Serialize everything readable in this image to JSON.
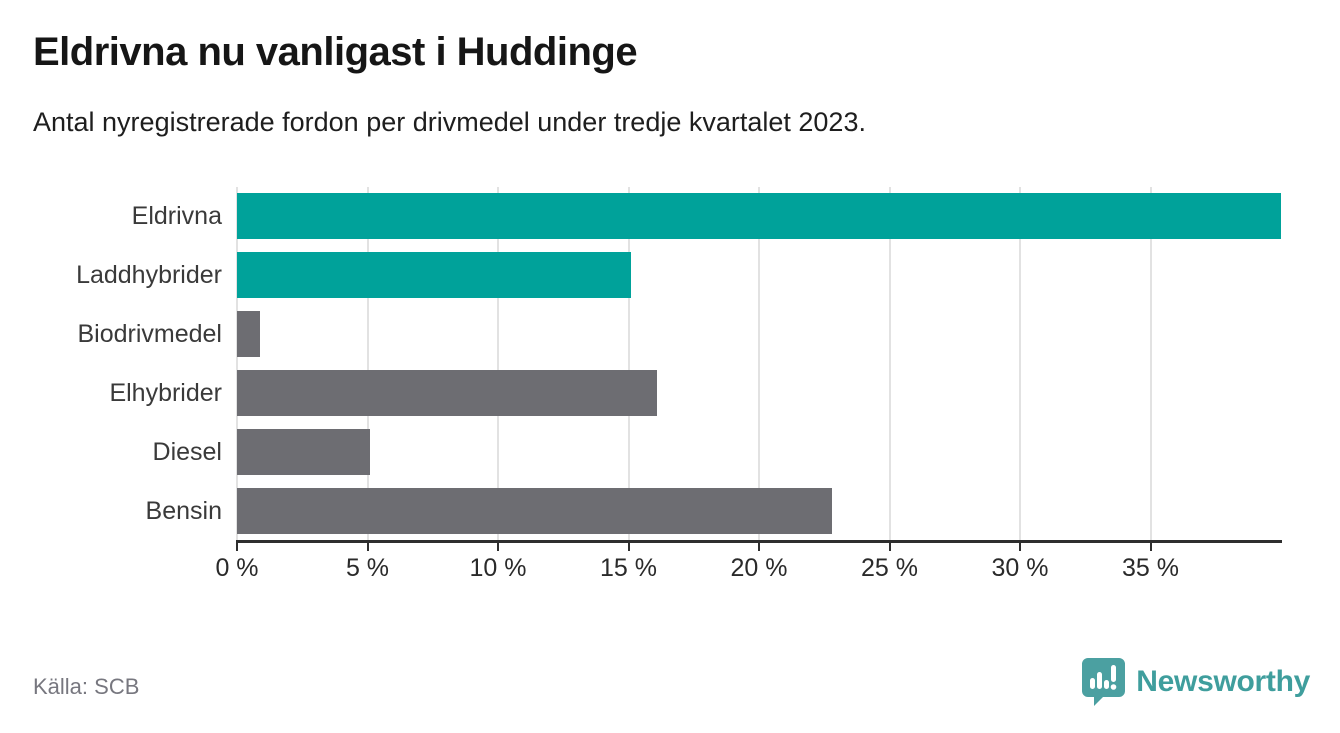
{
  "header": {
    "title": "Eldrivna nu vanligast i Huddinge",
    "subtitle": "Antal nyregistrerade fordon per drivmedel under tredje kvartalet 2023."
  },
  "footer": {
    "source": "Källa: SCB",
    "brand_name": "Newsworthy"
  },
  "icons": {
    "brand": "newsworthy-speech-bubble-bar-chart-icon"
  },
  "colors": {
    "accent_teal": "#00a29a",
    "neutral_gray": "#6d6d72",
    "gridline": "#e2e2e2",
    "axis": "#2e2e2e",
    "brand_teal": "#4ba0a1",
    "brand_text": "#3f9e9d"
  },
  "chart_data": {
    "type": "bar",
    "orientation": "horizontal",
    "title": "Eldrivna nu vanligast i Huddinge",
    "subtitle": "Antal nyregistrerade fordon per drivmedel under tredje kvartalet 2023.",
    "categories": [
      "Eldrivna",
      "Laddhybrider",
      "Biodrivmedel",
      "Elhybrider",
      "Diesel",
      "Bensin"
    ],
    "values": [
      40.0,
      15.1,
      0.9,
      16.1,
      5.1,
      22.8
    ],
    "bar_colors": [
      "#00a29a",
      "#00a29a",
      "#6d6d72",
      "#6d6d72",
      "#6d6d72",
      "#6d6d72"
    ],
    "unit": "%",
    "xlabel": "",
    "ylabel": "",
    "xlim": [
      0,
      40
    ],
    "x_ticks": [
      0,
      5,
      10,
      15,
      20,
      25,
      30,
      35
    ],
    "x_tick_labels": [
      "0 %",
      "5 %",
      "10 %",
      "15 %",
      "20 %",
      "25 %",
      "30 %",
      "35 %"
    ],
    "grid": "vertical",
    "legend": "none",
    "source": "Källa: SCB"
  }
}
